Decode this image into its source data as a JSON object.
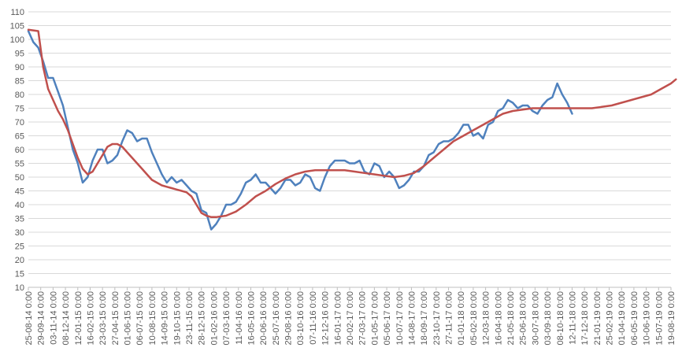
{
  "chart_data": {
    "type": "line",
    "title": "",
    "xlabel": "",
    "ylabel": "",
    "ylim": [
      10,
      110
    ],
    "y_ticks": [
      10,
      15,
      20,
      25,
      30,
      35,
      40,
      45,
      50,
      55,
      60,
      65,
      70,
      75,
      80,
      85,
      90,
      95,
      100,
      105,
      110
    ],
    "grid": "horizontal",
    "legend": "none",
    "x_tick_labels": [
      "25-08-14 0:00",
      "29-09-14 0:00",
      "03-11-14 0:00",
      "08-12-14 0:00",
      "12-01-15 0:00",
      "16-02-15 0:00",
      "23-03-15 0:00",
      "27-04-15 0:00",
      "01-06-15 0:00",
      "06-07-15 0:00",
      "10-08-15 0:00",
      "14-09-15 0:00",
      "19-10-15 0:00",
      "23-11-15 0:00",
      "28-12-15 0:00",
      "01-02-16 0:00",
      "07-03-16 0:00",
      "11-04-16 0:00",
      "16-05-16 0:00",
      "20-06-16 0:00",
      "25-07-16 0:00",
      "29-08-16 0:00",
      "03-10-16 0:00",
      "07-11-16 0:00",
      "12-12-16 0:00",
      "16-01-17 0:00",
      "20-02-17 0:00",
      "27-03-17 0:00",
      "01-05-17 0:00",
      "05-06-17 0:00",
      "10-07-17 0:00",
      "14-08-17 0:00",
      "18-09-17 0:00",
      "23-10-17 0:00",
      "27-11-17 0:00",
      "01-01-18 0:00",
      "05-02-18 0:00",
      "12-03-18 0:00",
      "16-04-18 0:00",
      "21-05-18 0:00",
      "25-06-18 0:00",
      "30-07-18 0:00",
      "03-09-18 0:00",
      "08-10-18 0:00",
      "12-11-18 0:00",
      "17-12-18 0:00",
      "21-01-19 0:00",
      "25-02-19 0:00",
      "01-04-19 0:00",
      "06-05-19 0:00",
      "10-06-19 0:00",
      "15-07-19 0:00",
      "19-08-19 0:00"
    ],
    "series": [
      {
        "color": "#4f81bd",
        "x": [
          "25-08-14",
          "08-09-14",
          "22-09-14",
          "06-10-14",
          "20-10-14",
          "03-11-14",
          "17-11-14",
          "01-12-14",
          "15-12-14",
          "29-12-14",
          "12-01-15",
          "26-01-15",
          "09-02-15",
          "23-02-15",
          "09-03-15",
          "23-03-15",
          "06-04-15",
          "20-04-15",
          "04-05-15",
          "18-05-15",
          "01-06-15",
          "15-06-15",
          "29-06-15",
          "13-07-15",
          "27-07-15",
          "10-08-15",
          "24-08-15",
          "07-09-15",
          "21-09-15",
          "05-10-15",
          "19-10-15",
          "02-11-15",
          "16-11-15",
          "30-11-15",
          "14-12-15",
          "28-12-15",
          "11-01-16",
          "25-01-16",
          "08-02-16",
          "22-02-16",
          "07-03-16",
          "21-03-16",
          "04-04-16",
          "18-04-16",
          "02-05-16",
          "16-05-16",
          "30-05-16",
          "13-06-16",
          "27-06-16",
          "11-07-16",
          "25-07-16",
          "08-08-16",
          "22-08-16",
          "05-09-16",
          "19-09-16",
          "03-10-16",
          "17-10-16",
          "31-10-16",
          "14-11-16",
          "28-11-16",
          "12-12-16",
          "26-12-16",
          "09-01-17",
          "23-01-17",
          "06-02-17",
          "20-02-17",
          "06-03-17",
          "20-03-17",
          "03-04-17",
          "17-04-17",
          "01-05-17",
          "15-05-17",
          "29-05-17",
          "12-06-17",
          "26-06-17",
          "10-07-17",
          "24-07-17",
          "07-08-17",
          "21-08-17",
          "04-09-17",
          "18-09-17",
          "02-10-17",
          "16-10-17",
          "30-10-17",
          "13-11-17",
          "27-11-17",
          "11-12-17",
          "25-12-17",
          "08-01-18",
          "22-01-18",
          "05-02-18",
          "19-02-18",
          "05-03-18",
          "19-03-18",
          "02-04-18",
          "16-04-18",
          "30-04-18",
          "14-05-18",
          "28-05-18",
          "11-06-18",
          "25-06-18",
          "09-07-18",
          "23-07-18",
          "06-08-18",
          "20-08-18",
          "03-09-18",
          "17-09-18",
          "01-10-18",
          "15-10-18",
          "29-10-18",
          "12-11-18"
        ],
        "values": [
          103,
          99,
          97,
          92,
          86,
          86,
          81,
          76,
          68,
          60,
          55,
          48,
          50,
          56,
          60,
          60,
          55,
          56,
          58,
          63,
          67,
          66,
          63,
          64,
          64,
          59,
          55,
          51,
          48,
          50,
          48,
          49,
          47,
          45,
          44,
          38,
          37,
          31,
          33,
          36,
          40,
          40,
          41,
          44,
          48,
          49,
          51,
          48,
          48,
          46,
          44,
          46,
          49,
          49,
          47,
          48,
          51,
          50,
          46,
          45,
          50,
          54,
          56,
          56,
          56,
          55,
          55,
          56,
          52,
          51,
          55,
          54,
          50,
          52,
          50,
          46,
          47,
          49,
          52,
          52,
          54,
          58,
          59,
          62,
          63,
          63,
          64,
          66,
          69,
          69,
          65,
          66,
          64,
          69,
          70,
          74,
          75,
          78,
          77,
          75,
          76,
          76,
          74,
          73,
          76,
          78,
          79,
          84,
          80,
          77,
          73
        ]
      },
      {
        "color": "#c0504d",
        "x": [
          "25-08-14",
          "22-09-14",
          "06-10-14",
          "20-10-14",
          "03-11-14",
          "17-11-14",
          "01-12-14",
          "15-12-14",
          "29-12-14",
          "12-01-15",
          "26-01-15",
          "09-02-15",
          "23-02-15",
          "09-03-15",
          "23-03-15",
          "06-04-15",
          "20-04-15",
          "04-05-15",
          "18-05-15",
          "01-06-15",
          "15-06-15",
          "29-06-15",
          "13-07-15",
          "27-07-15",
          "10-08-15",
          "24-08-15",
          "07-09-15",
          "21-09-15",
          "05-10-15",
          "19-10-15",
          "02-11-15",
          "16-11-15",
          "30-11-15",
          "14-12-15",
          "28-12-15",
          "11-01-16",
          "25-01-16",
          "08-02-16",
          "07-03-16",
          "04-04-16",
          "02-05-16",
          "30-05-16",
          "27-06-16",
          "25-07-16",
          "22-08-16",
          "19-09-16",
          "17-10-16",
          "14-11-16",
          "12-12-16",
          "09-01-17",
          "06-02-17",
          "06-03-17",
          "03-04-17",
          "01-05-17",
          "29-05-17",
          "26-06-17",
          "24-07-17",
          "21-08-17",
          "18-09-17",
          "16-10-17",
          "13-11-17",
          "11-12-17",
          "08-01-18",
          "05-02-18",
          "05-03-18",
          "02-04-18",
          "30-04-18",
          "28-05-18",
          "25-06-18",
          "23-07-18",
          "20-08-18",
          "17-09-18",
          "15-10-18",
          "12-11-18",
          "10-12-18",
          "07-01-19",
          "04-02-19",
          "04-03-19",
          "01-04-19",
          "29-04-19",
          "27-05-19",
          "24-06-19",
          "22-07-19",
          "19-08-19",
          "02-09-19"
        ],
        "values": [
          103.5,
          103,
          90,
          82,
          78,
          74,
          71,
          67,
          62,
          57,
          53,
          51,
          52,
          55,
          58,
          61,
          62,
          62,
          61,
          59,
          57,
          55,
          53,
          51,
          49,
          48,
          47,
          46.5,
          46,
          45.5,
          45,
          44.5,
          43,
          40,
          37,
          36,
          35.5,
          35.5,
          36,
          37.5,
          40,
          43,
          45,
          47.5,
          49.5,
          51,
          52,
          52.5,
          52.5,
          52.5,
          52.5,
          52,
          51.5,
          51,
          50.5,
          50,
          50.5,
          51.5,
          54,
          57,
          60,
          63,
          65,
          67,
          69,
          71,
          73,
          74,
          74.5,
          75,
          75,
          75,
          75,
          75,
          75,
          75,
          75.5,
          76,
          77,
          78,
          79,
          80,
          82,
          84,
          85.5
        ]
      }
    ]
  }
}
